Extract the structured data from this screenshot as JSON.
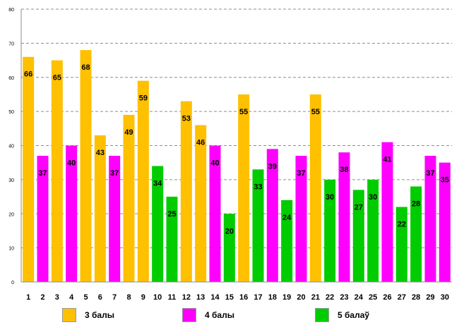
{
  "chart_data": {
    "type": "bar",
    "title": "",
    "xlabel": "",
    "ylabel": "",
    "ylim": [
      0,
      80
    ],
    "yticks": [
      0,
      10,
      20,
      30,
      40,
      50,
      60,
      70,
      80
    ],
    "grid": true,
    "categories": [
      "1",
      "2",
      "3",
      "4",
      "5",
      "6",
      "7",
      "8",
      "9",
      "10",
      "11",
      "12",
      "13",
      "14",
      "15",
      "16",
      "17",
      "18",
      "19",
      "20",
      "21",
      "22",
      "23",
      "24",
      "25",
      "26",
      "27",
      "28",
      "29",
      "30"
    ],
    "values": [
      66,
      37,
      65,
      40,
      68,
      43,
      37,
      49,
      59,
      34,
      25,
      53,
      46,
      40,
      20,
      55,
      33,
      39,
      24,
      37,
      55,
      30,
      38,
      27,
      30,
      41,
      22,
      28,
      37,
      35
    ],
    "groups": [
      3,
      4,
      3,
      4,
      3,
      3,
      4,
      3,
      3,
      5,
      5,
      3,
      3,
      4,
      5,
      3,
      5,
      4,
      5,
      4,
      3,
      5,
      4,
      5,
      5,
      4,
      5,
      5,
      4,
      4
    ],
    "colors": {
      "3": "#FFC000",
      "4": "#FF00FF",
      "5": "#00CC00"
    },
    "legend": [
      {
        "group": "3",
        "label": "3 балы"
      },
      {
        "group": "4",
        "label": "4 балы"
      },
      {
        "group": "5",
        "label": "5 балаў"
      }
    ]
  }
}
